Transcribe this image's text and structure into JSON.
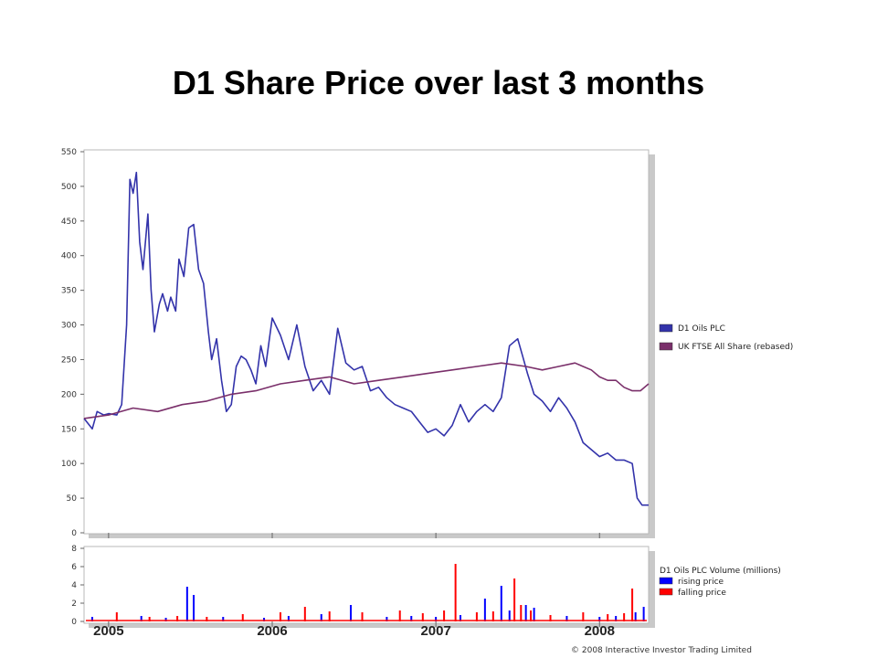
{
  "title": "D1 Share Price over last 3 months",
  "copyright": "© 2008 Interactive Investor Trading Limited",
  "chart_data": [
    {
      "type": "line",
      "ylim": [
        0,
        550
      ],
      "yticks": [
        0,
        50,
        100,
        150,
        200,
        250,
        300,
        350,
        400,
        450,
        500,
        550
      ],
      "x_labels": [
        "2005",
        "2006",
        "2007",
        "2008"
      ],
      "xlim": [
        2004.85,
        2008.3
      ],
      "grid": false,
      "legend_position": "right",
      "series": [
        {
          "name": "D1 Oils PLC",
          "color": "#3333aa",
          "x": [
            2004.85,
            2004.9,
            2004.93,
            2004.97,
            2005.0,
            2005.05,
            2005.08,
            2005.11,
            2005.13,
            2005.15,
            2005.17,
            2005.19,
            2005.21,
            2005.24,
            2005.26,
            2005.28,
            2005.31,
            2005.33,
            2005.36,
            2005.38,
            2005.41,
            2005.43,
            2005.46,
            2005.49,
            2005.52,
            2005.55,
            2005.58,
            2005.61,
            2005.63,
            2005.66,
            2005.69,
            2005.72,
            2005.75,
            2005.78,
            2005.81,
            2005.84,
            2005.87,
            2005.9,
            2005.93,
            2005.96,
            2006.0,
            2006.05,
            2006.1,
            2006.15,
            2006.2,
            2006.25,
            2006.3,
            2006.35,
            2006.4,
            2006.45,
            2006.5,
            2006.55,
            2006.6,
            2006.65,
            2006.7,
            2006.75,
            2006.8,
            2006.85,
            2006.9,
            2006.95,
            2007.0,
            2007.05,
            2007.1,
            2007.15,
            2007.2,
            2007.25,
            2007.3,
            2007.35,
            2007.4,
            2007.45,
            2007.5,
            2007.53,
            2007.56,
            2007.6,
            2007.65,
            2007.7,
            2007.75,
            2007.8,
            2007.85,
            2007.9,
            2007.95,
            2008.0,
            2008.05,
            2008.1,
            2008.15,
            2008.2,
            2008.23,
            2008.26,
            2008.3
          ],
          "values": [
            165,
            150,
            175,
            170,
            172,
            170,
            185,
            300,
            510,
            490,
            520,
            420,
            380,
            460,
            350,
            290,
            330,
            345,
            320,
            340,
            320,
            395,
            370,
            440,
            445,
            380,
            360,
            290,
            250,
            280,
            220,
            175,
            185,
            240,
            255,
            250,
            235,
            215,
            270,
            240,
            310,
            285,
            250,
            300,
            240,
            205,
            220,
            200,
            295,
            245,
            235,
            240,
            205,
            210,
            195,
            185,
            180,
            175,
            160,
            145,
            150,
            140,
            155,
            185,
            160,
            175,
            185,
            175,
            195,
            270,
            280,
            255,
            230,
            200,
            190,
            175,
            195,
            180,
            160,
            130,
            120,
            110,
            115,
            105,
            105,
            100,
            50,
            40,
            40
          ]
        },
        {
          "name": "UK FTSE All Share (rebased)",
          "color": "#7a2f6a",
          "x": [
            2004.85,
            2005.0,
            2005.15,
            2005.3,
            2005.45,
            2005.6,
            2005.75,
            2005.9,
            2006.05,
            2006.2,
            2006.35,
            2006.5,
            2006.65,
            2006.8,
            2006.95,
            2007.1,
            2007.25,
            2007.4,
            2007.55,
            2007.65,
            2007.75,
            2007.85,
            2007.95,
            2008.0,
            2008.05,
            2008.1,
            2008.15,
            2008.2,
            2008.25,
            2008.3
          ],
          "values": [
            165,
            170,
            180,
            175,
            185,
            190,
            200,
            205,
            215,
            220,
            225,
            215,
            220,
            225,
            230,
            235,
            240,
            245,
            240,
            235,
            240,
            245,
            235,
            225,
            220,
            220,
            210,
            205,
            205,
            215
          ]
        }
      ]
    },
    {
      "type": "bar",
      "title": "D1 Oils PLC Volume (millions)",
      "ylim": [
        0,
        8
      ],
      "yticks": [
        0,
        2,
        4,
        6,
        8
      ],
      "legend_position": "right",
      "series": [
        {
          "name": "rising price",
          "color": "#0000ff",
          "x": [
            2004.9,
            2005.2,
            2005.35,
            2005.48,
            2005.52,
            2005.7,
            2005.95,
            2006.1,
            2006.3,
            2006.48,
            2006.7,
            2006.85,
            2007.0,
            2007.15,
            2007.3,
            2007.4,
            2007.45,
            2007.55,
            2007.6,
            2007.8,
            2008.0,
            2008.1,
            2008.22,
            2008.27
          ],
          "values": [
            0.5,
            0.6,
            0.4,
            3.8,
            2.9,
            0.5,
            0.4,
            0.6,
            0.8,
            1.8,
            0.5,
            0.6,
            0.5,
            0.7,
            2.5,
            3.9,
            1.2,
            1.8,
            1.5,
            0.6,
            0.5,
            0.6,
            1.0,
            1.6
          ]
        },
        {
          "name": "falling price",
          "color": "#ff0000",
          "x": [
            2005.05,
            2005.25,
            2005.42,
            2005.6,
            2005.82,
            2006.05,
            2006.2,
            2006.35,
            2006.55,
            2006.78,
            2006.92,
            2007.05,
            2007.12,
            2007.25,
            2007.35,
            2007.48,
            2007.52,
            2007.58,
            2007.7,
            2007.9,
            2008.05,
            2008.15,
            2008.2
          ],
          "values": [
            1.0,
            0.5,
            0.6,
            0.5,
            0.8,
            1.0,
            1.6,
            1.1,
            1.0,
            1.2,
            0.9,
            1.2,
            6.3,
            1.0,
            1.1,
            4.7,
            1.8,
            1.2,
            0.7,
            1.0,
            0.8,
            0.9,
            3.6
          ]
        }
      ]
    }
  ]
}
